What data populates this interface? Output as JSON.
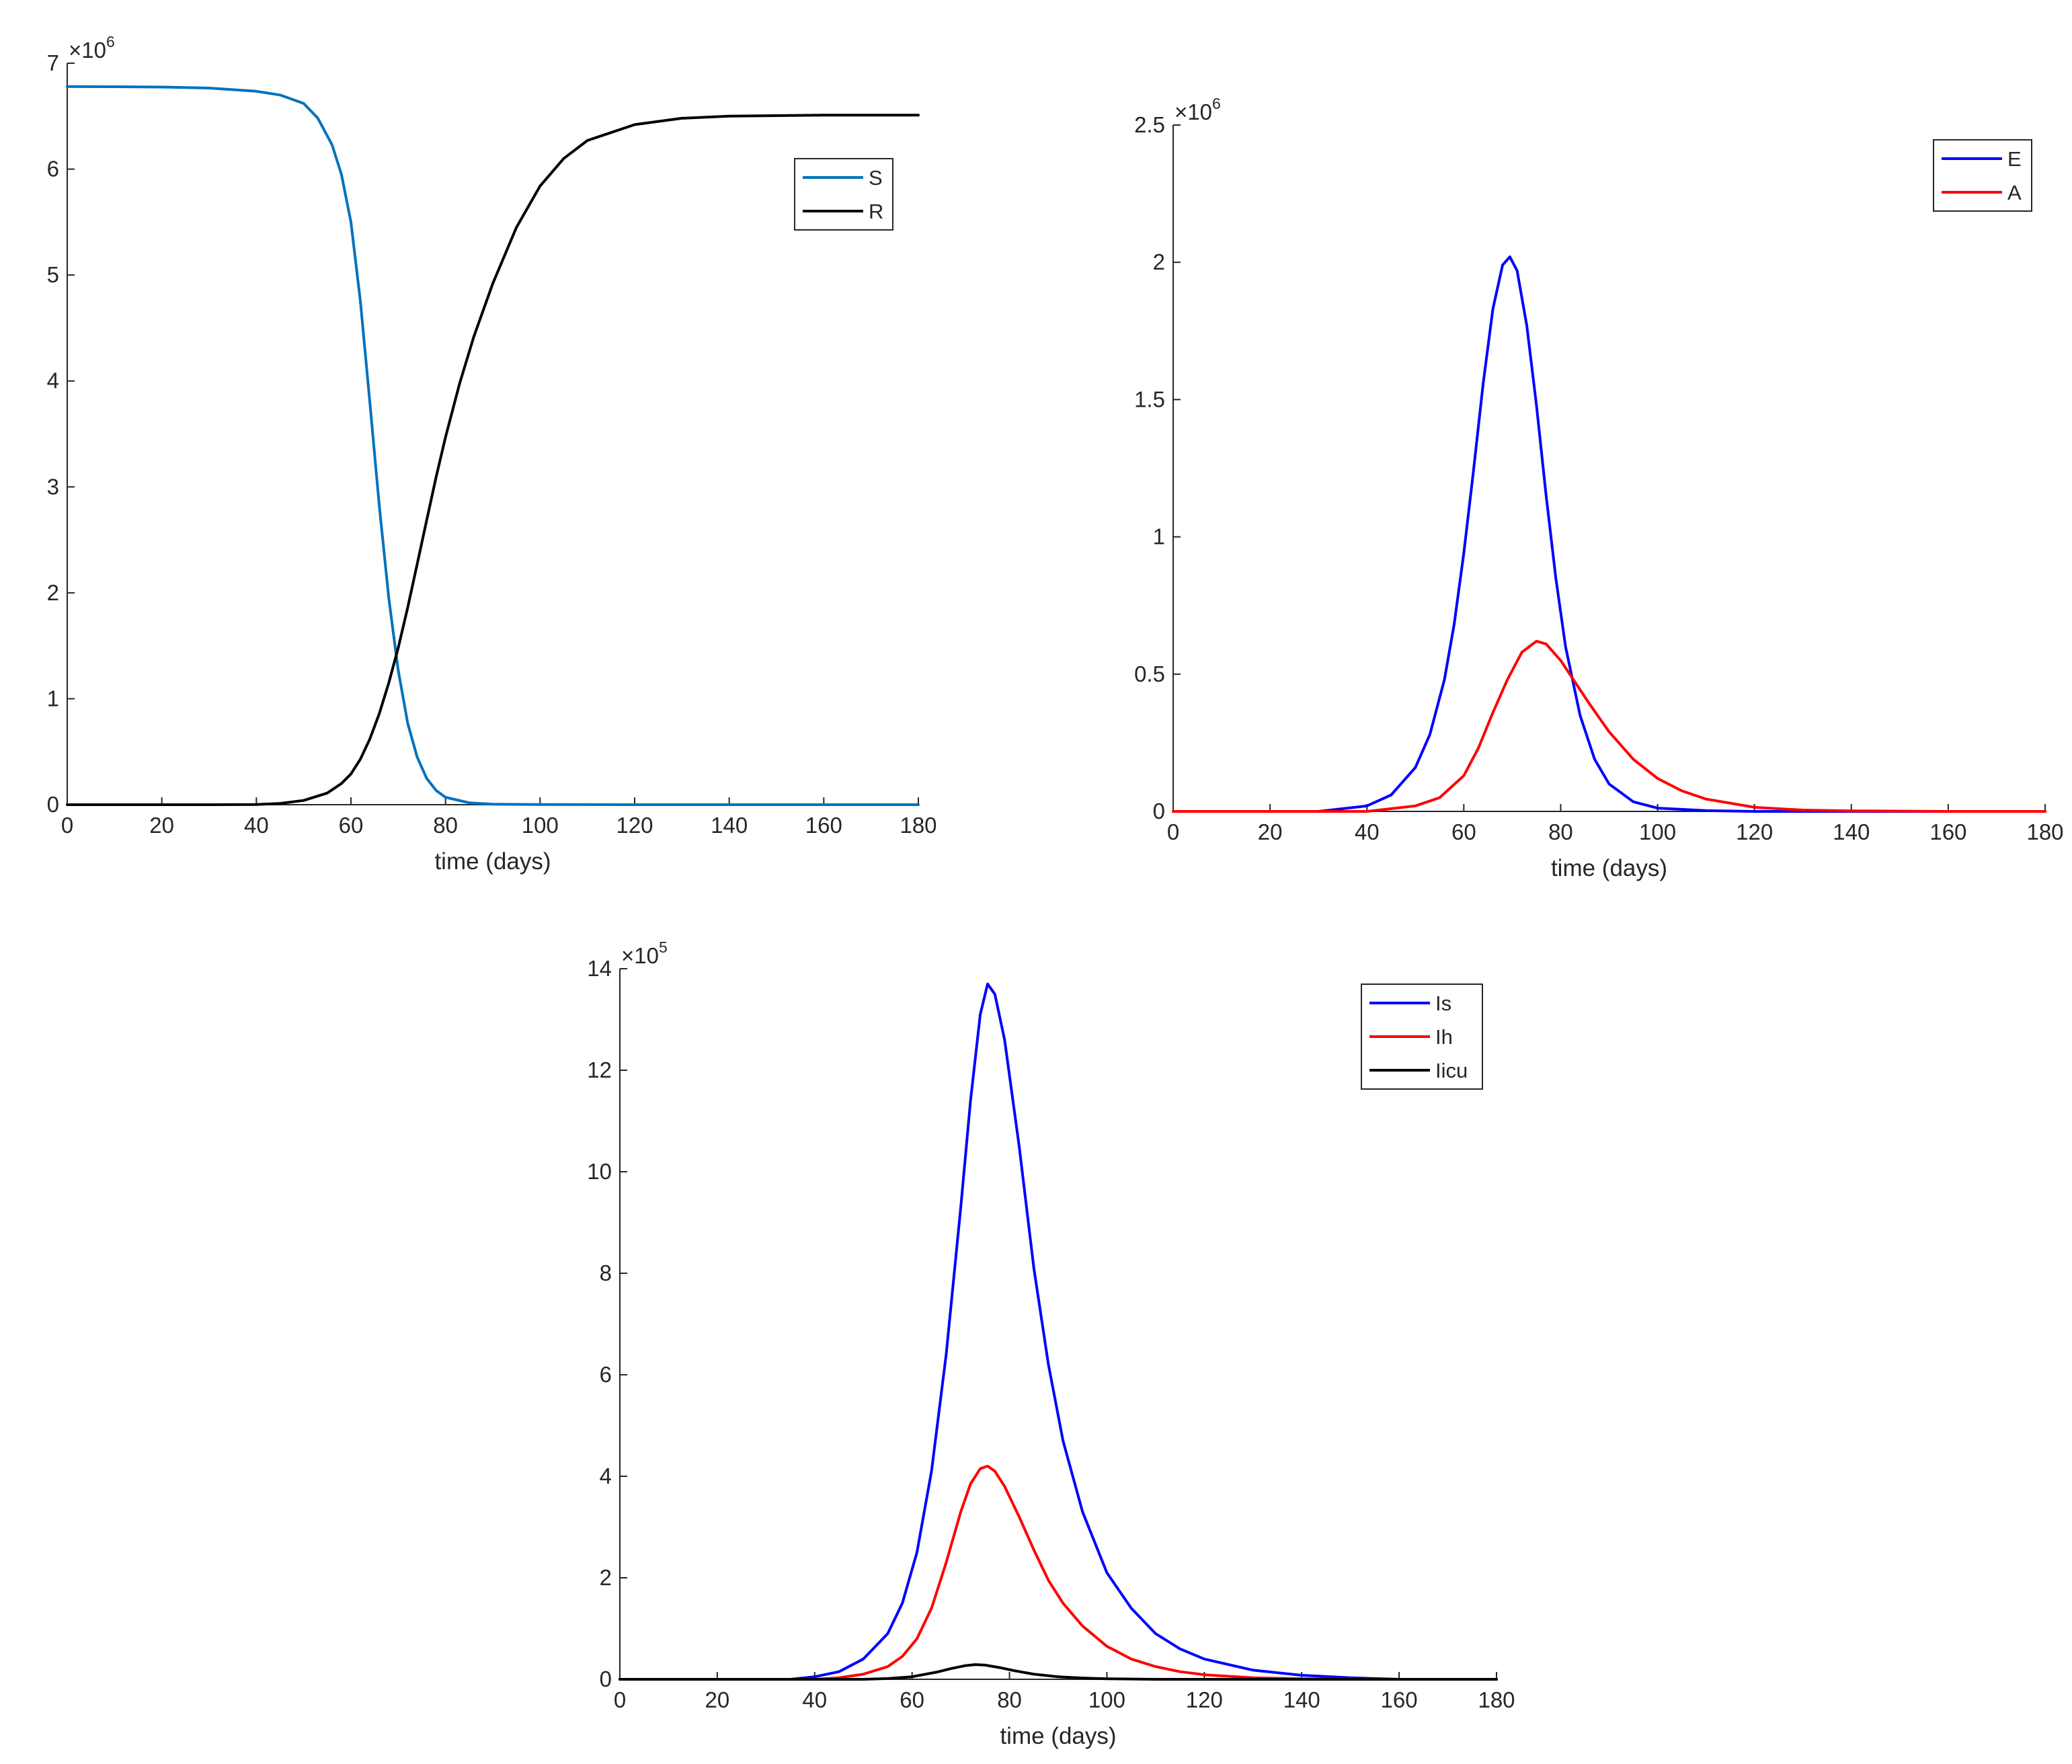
{
  "chart_data": [
    {
      "type": "line",
      "xlabel": "time (days)",
      "ylabel": "",
      "xlim": [
        0,
        180
      ],
      "ylim": [
        0,
        7000000
      ],
      "xticks": [
        0,
        20,
        40,
        60,
        80,
        100,
        120,
        140,
        160,
        180
      ],
      "xtick_labels": [
        "0",
        "20",
        "40",
        "60",
        "80",
        "100",
        "120",
        "140",
        "160",
        "180"
      ],
      "yticks": [
        0,
        1000000,
        2000000,
        3000000,
        4000000,
        5000000,
        6000000,
        7000000
      ],
      "ytick_labels": [
        "0",
        "1",
        "2",
        "3",
        "4",
        "5",
        "6",
        "7"
      ],
      "y_exponent_label": "×10",
      "y_exponent": "6",
      "legend_position": "top-right",
      "grid": false,
      "series": [
        {
          "name": "S",
          "color": "#0072BD",
          "x": [
            0,
            10,
            20,
            30,
            40,
            45,
            50,
            53,
            56,
            58,
            60,
            62,
            64,
            66,
            68,
            70,
            72,
            74,
            76,
            78,
            80,
            85,
            90,
            100,
            120,
            150,
            180
          ],
          "y": [
            6780000,
            6778000,
            6775000,
            6765000,
            6735000,
            6700000,
            6620000,
            6480000,
            6230000,
            5950000,
            5500000,
            4750000,
            3800000,
            2820000,
            1950000,
            1270000,
            770000,
            450000,
            250000,
            135000,
            70000,
            18000,
            5000,
            1000,
            0,
            0,
            0
          ]
        },
        {
          "name": "R",
          "color": "#000000",
          "x": [
            0,
            30,
            40,
            45,
            50,
            55,
            58,
            60,
            62,
            64,
            66,
            68,
            70,
            72,
            74,
            76,
            78,
            80,
            83,
            86,
            90,
            95,
            100,
            105,
            110,
            120,
            130,
            140,
            160,
            180
          ],
          "y": [
            0,
            0,
            2000,
            12000,
            40000,
            110000,
            200000,
            290000,
            430000,
            620000,
            860000,
            1150000,
            1480000,
            1860000,
            2270000,
            2680000,
            3090000,
            3470000,
            3980000,
            4420000,
            4920000,
            5450000,
            5840000,
            6100000,
            6270000,
            6420000,
            6480000,
            6500000,
            6510000,
            6510000
          ]
        }
      ]
    },
    {
      "type": "line",
      "xlabel": "time (days)",
      "ylabel": "",
      "xlim": [
        0,
        180
      ],
      "ylim": [
        0,
        2500000
      ],
      "xticks": [
        0,
        20,
        40,
        60,
        80,
        100,
        120,
        140,
        160,
        180
      ],
      "xtick_labels": [
        "0",
        "20",
        "40",
        "60",
        "80",
        "100",
        "120",
        "140",
        "160",
        "180"
      ],
      "yticks": [
        0,
        500000,
        1000000,
        1500000,
        2000000,
        2500000
      ],
      "ytick_labels": [
        "0",
        "0.5",
        "1",
        "1.5",
        "2",
        "2.5"
      ],
      "y_exponent_label": "×10",
      "y_exponent": "6",
      "legend_position": "top-right",
      "grid": false,
      "series": [
        {
          "name": "E",
          "color": "#0000FF",
          "x": [
            0,
            30,
            40,
            45,
            50,
            53,
            56,
            58,
            60,
            62,
            64,
            66,
            68,
            69.5,
            71,
            73,
            75,
            77,
            79,
            81,
            84,
            87,
            90,
            95,
            100,
            110,
            120,
            140,
            180
          ],
          "y": [
            0,
            0,
            20000,
            60000,
            160000,
            280000,
            480000,
            680000,
            940000,
            1240000,
            1560000,
            1830000,
            1990000,
            2020000,
            1970000,
            1770000,
            1480000,
            1150000,
            850000,
            600000,
            350000,
            190000,
            100000,
            35000,
            12000,
            3000,
            0,
            0,
            0
          ]
        },
        {
          "name": "A",
          "color": "#FF0000",
          "x": [
            0,
            40,
            50,
            55,
            60,
            63,
            66,
            69,
            72,
            75,
            77,
            80,
            83,
            86,
            90,
            95,
            100,
            105,
            110,
            120,
            130,
            140,
            160,
            180
          ],
          "y": [
            0,
            0,
            20000,
            50000,
            130000,
            230000,
            360000,
            480000,
            580000,
            620000,
            610000,
            550000,
            470000,
            390000,
            290000,
            190000,
            120000,
            75000,
            45000,
            15000,
            5000,
            2000,
            0,
            0
          ]
        }
      ]
    },
    {
      "type": "line",
      "xlabel": "time (days)",
      "ylabel": "",
      "xlim": [
        0,
        180
      ],
      "ylim": [
        0,
        1400000
      ],
      "xticks": [
        0,
        20,
        40,
        60,
        80,
        100,
        120,
        140,
        160,
        180
      ],
      "xtick_labels": [
        "0",
        "20",
        "40",
        "60",
        "80",
        "100",
        "120",
        "140",
        "160",
        "180"
      ],
      "yticks": [
        0,
        200000,
        400000,
        600000,
        800000,
        1000000,
        1200000,
        1400000
      ],
      "ytick_labels": [
        "0",
        "2",
        "4",
        "6",
        "8",
        "10",
        "12",
        "14"
      ],
      "y_exponent_label": "×10",
      "y_exponent": "5",
      "legend_position": "top-right",
      "grid": false,
      "series": [
        {
          "name": "Is",
          "color": "#0000FF",
          "x": [
            0,
            35,
            40,
            45,
            50,
            55,
            58,
            61,
            64,
            67,
            70,
            72,
            74,
            75.5,
            77,
            79,
            82,
            85,
            88,
            91,
            95,
            100,
            105,
            110,
            115,
            120,
            130,
            140,
            150,
            160,
            180
          ],
          "y": [
            0,
            0,
            5000,
            15000,
            40000,
            90000,
            150000,
            250000,
            410000,
            640000,
            930000,
            1140000,
            1310000,
            1370000,
            1350000,
            1260000,
            1050000,
            810000,
            620000,
            470000,
            330000,
            210000,
            140000,
            90000,
            60000,
            40000,
            18000,
            8000,
            3000,
            0,
            0
          ]
        },
        {
          "name": "Ih",
          "color": "#FF0000",
          "x": [
            0,
            40,
            45,
            50,
            55,
            58,
            61,
            64,
            67,
            70,
            72,
            74,
            75.5,
            77,
            79,
            82,
            85,
            88,
            91,
            95,
            100,
            105,
            110,
            115,
            120,
            130,
            140,
            150,
            180
          ],
          "y": [
            0,
            0,
            3000,
            10000,
            25000,
            45000,
            80000,
            140000,
            230000,
            330000,
            385000,
            415000,
            420000,
            410000,
            380000,
            320000,
            255000,
            195000,
            150000,
            105000,
            65000,
            40000,
            25000,
            15000,
            9000,
            3000,
            1000,
            0,
            0
          ]
        },
        {
          "name": "Iicu",
          "color": "#000000",
          "x": [
            0,
            50,
            55,
            60,
            65,
            68,
            71,
            73,
            75,
            78,
            81,
            85,
            90,
            95,
            100,
            110,
            120,
            180
          ],
          "y": [
            0,
            0,
            1500,
            5000,
            14000,
            21000,
            27000,
            29000,
            28000,
            23000,
            17000,
            10000,
            5000,
            2500,
            1000,
            0,
            0,
            0
          ]
        }
      ]
    }
  ]
}
